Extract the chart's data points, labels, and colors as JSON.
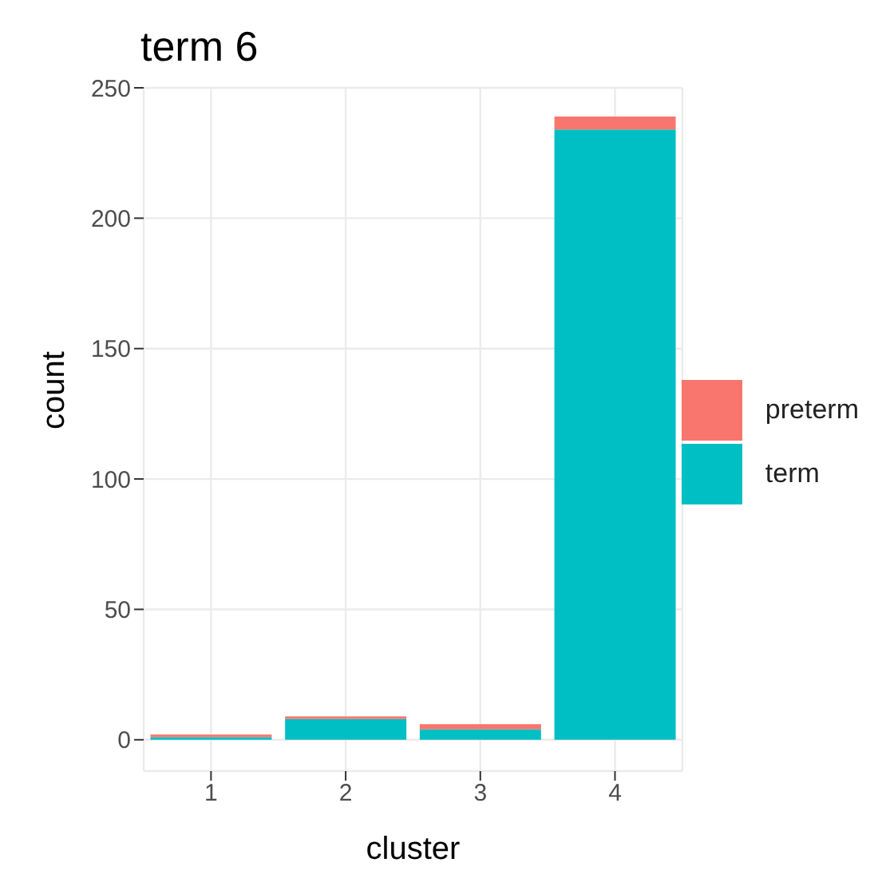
{
  "chart_data": {
    "type": "bar",
    "title": "term 6",
    "xlabel": "cluster",
    "ylabel": "count",
    "categories": [
      "1",
      "2",
      "3",
      "4"
    ],
    "stacked": true,
    "series": [
      {
        "name": "term",
        "color": "#00bfc4",
        "values": [
          1,
          8,
          4,
          234
        ]
      },
      {
        "name": "preterm",
        "color": "#f8766d",
        "values": [
          1,
          1,
          2,
          5
        ]
      }
    ],
    "ylim": [
      -12,
      250
    ],
    "yticks": [
      0,
      50,
      100,
      150,
      200,
      250
    ],
    "grid": true,
    "legend": "right"
  }
}
